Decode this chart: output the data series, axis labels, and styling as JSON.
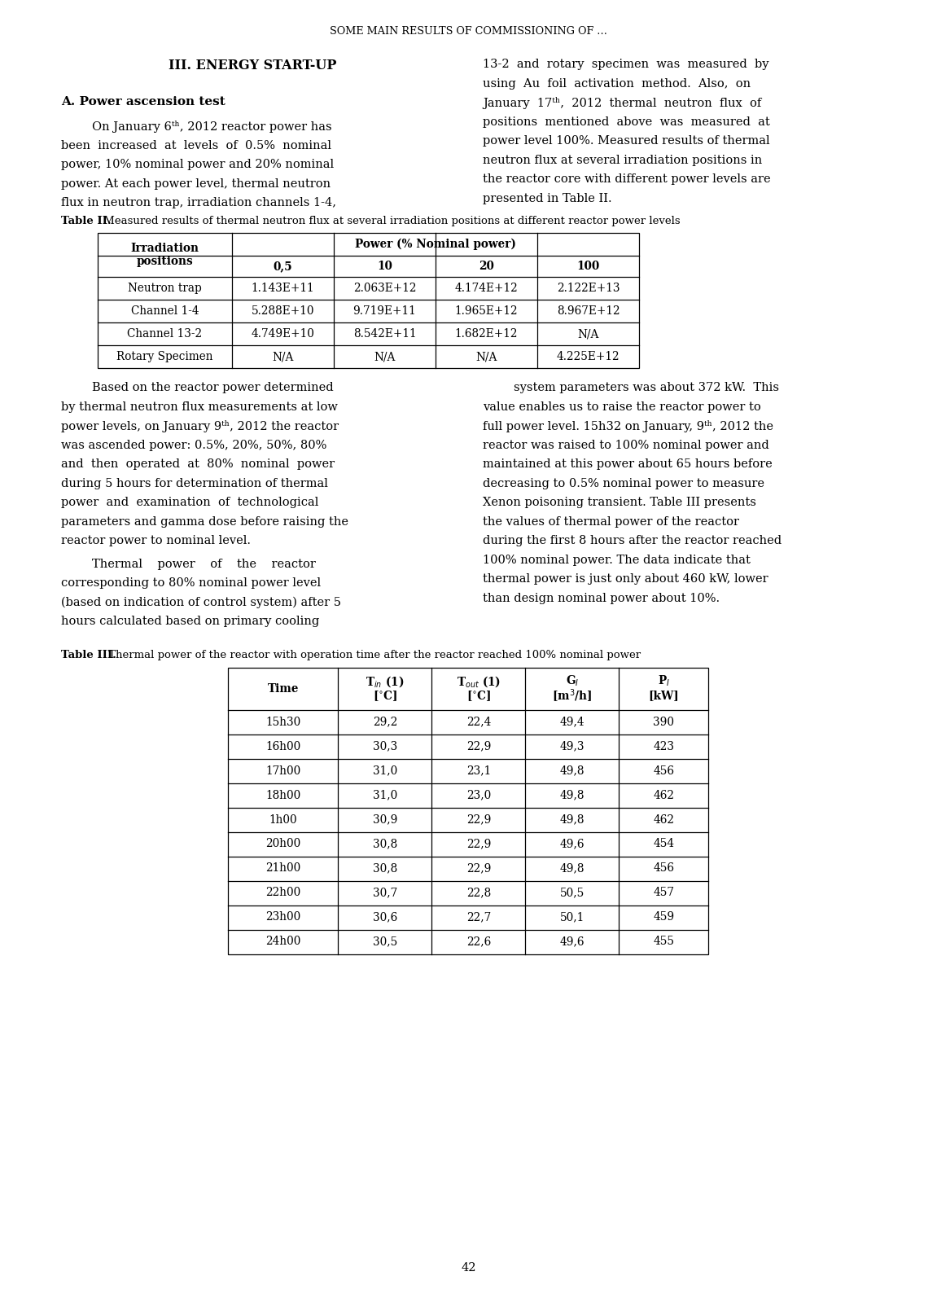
{
  "page_title": "SOME MAIN RESULTS OF COMMISSIONING OF …",
  "section_title": "III. ENERGY START-UP",
  "subsection_title": "A. Power ascension test",
  "table2_caption_bold": "Table II.",
  "table2_caption_rest": " Measured results of thermal neutron flux at several irradiation positions at different reactor power levels",
  "table2_header_span": "Power (% Nominal power)",
  "table2_sub_headers": [
    "0,5",
    "10",
    "20",
    "100"
  ],
  "table2_data": [
    [
      "Neutron trap",
      "1.143E+11",
      "2.063E+12",
      "4.174E+12",
      "2.122E+13"
    ],
    [
      "Channel 1-4",
      "5.288E+10",
      "9.719E+11",
      "1.965E+12",
      "8.967E+12"
    ],
    [
      "Channel 13-2",
      "4.749E+10",
      "8.542E+11",
      "1.682E+12",
      "N/A"
    ],
    [
      "Rotary Specimen",
      "N/A",
      "N/A",
      "N/A",
      "4.225E+12"
    ]
  ],
  "table3_caption_bold": "Table III.",
  "table3_caption_rest": " Thermal power of the reactor with operation time after the reactor reached 100% nominal power",
  "table3_data": [
    [
      "15h30",
      "29,2",
      "22,4",
      "49,4",
      "390"
    ],
    [
      "16h00",
      "30,3",
      "22,9",
      "49,3",
      "423"
    ],
    [
      "17h00",
      "31,0",
      "23,1",
      "49,8",
      "456"
    ],
    [
      "18h00",
      "31,0",
      "23,0",
      "49,8",
      "462"
    ],
    [
      "1h00",
      "30,9",
      "22,9",
      "49,8",
      "462"
    ],
    [
      "20h00",
      "30,8",
      "22,9",
      "49,6",
      "454"
    ],
    [
      "21h00",
      "30,8",
      "22,9",
      "49,8",
      "456"
    ],
    [
      "22h00",
      "30,7",
      "22,8",
      "50,5",
      "457"
    ],
    [
      "23h00",
      "30,6",
      "22,7",
      "50,1",
      "459"
    ],
    [
      "24h00",
      "30,5",
      "22,6",
      "49,6",
      "455"
    ]
  ],
  "page_number": "42",
  "left_p1": [
    "On January 6ᵗʰ, 2012 reactor power has",
    "been  increased  at  levels  of  0.5%  nominal",
    "power, 10% nominal power and 20% nominal",
    "power. At each power level, thermal neutron",
    "flux in neutron trap, irradiation channels 1-4,"
  ],
  "right_p1": [
    "13-2  and  rotary  specimen  was  measured  by",
    "using  Au  foil  activation  method.  Also,  on",
    "January  17ᵗʰ,  2012  thermal  neutron  flux  of",
    "positions  mentioned  above  was  measured  at",
    "power level 100%. Measured results of thermal",
    "neutron flux at several irradiation positions in",
    "the reactor core with different power levels are",
    "presented in Table II."
  ],
  "left_p2": [
    "Based on the reactor power determined",
    "by thermal neutron flux measurements at low",
    "power levels, on January 9ᵗʰ, 2012 the reactor",
    "was ascended power: 0.5%, 20%, 50%, 80%",
    "and  then  operated  at  80%  nominal  power",
    "during 5 hours for determination of thermal",
    "power  and  examination  of  technological",
    "parameters and gamma dose before raising the",
    "reactor power to nominal level."
  ],
  "left_p3": [
    "Thermal    power    of    the    reactor",
    "corresponding to 80% nominal power level",
    "(based on indication of control system) after 5",
    "hours calculated based on primary cooling"
  ],
  "right_p2": [
    "system parameters was about 372 kW.  This",
    "value enables us to raise the reactor power to",
    "full power level. 15h32 on January, 9ᵗʰ, 2012 the",
    "reactor was raised to 100% nominal power and",
    "maintained at this power about 65 hours before",
    "decreasing to 0.5% nominal power to measure",
    "Xenon poisoning transient. Table III presents",
    "the values of thermal power of the reactor",
    "during the first 8 hours after the reactor reached",
    "100% nominal power. The data indicate that",
    "thermal power is just only about 460 kW, lower",
    "than design nominal power about 10%."
  ],
  "background_color": "#ffffff"
}
